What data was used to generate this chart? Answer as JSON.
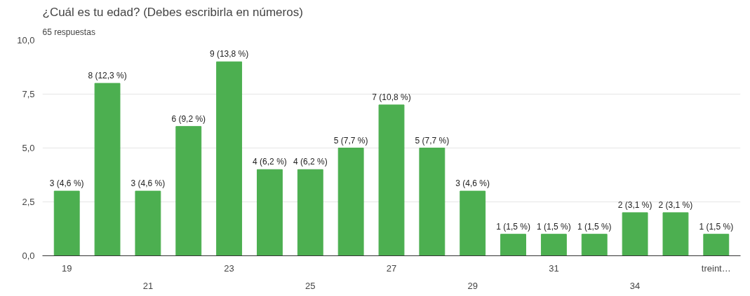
{
  "chart_data": {
    "type": "bar",
    "title": "¿Cuál es tu edad? (Debes escribirla en números)",
    "subtitle": "65 respuestas",
    "categories": [
      "19",
      null,
      "21",
      null,
      "23",
      null,
      "25",
      null,
      "27",
      null,
      "29",
      null,
      "31",
      null,
      "34",
      null,
      "treint…"
    ],
    "values": [
      3,
      8,
      3,
      6,
      9,
      4,
      4,
      5,
      7,
      5,
      3,
      1,
      1,
      1,
      2,
      2,
      1
    ],
    "value_labels": [
      "3 (4,6 %)",
      "8 (12,3 %)",
      "3 (4,6 %)",
      "6 (9,2 %)",
      "9 (13,8 %)",
      "4 (6,2 %)",
      "4 (6,2 %)",
      "5 (7,7 %)",
      "7 (10,8 %)",
      "5 (7,7 %)",
      "3 (4,6 %)",
      "1 (1,5 %)",
      "1 (1,5 %)",
      "1 (1,5 %)",
      "2 (3,1 %)",
      "2 (3,1 %)",
      "1 (1,5 %)"
    ],
    "color": "#4caf50",
    "ylim": [
      0,
      10
    ],
    "yticks": [
      {
        "value": 0,
        "label": "0,0"
      },
      {
        "value": 2.5,
        "label": "2,5"
      },
      {
        "value": 5,
        "label": "5,0"
      },
      {
        "value": 7.5,
        "label": "7,5"
      },
      {
        "value": 10,
        "label": "10,0"
      }
    ],
    "grid": "y"
  }
}
